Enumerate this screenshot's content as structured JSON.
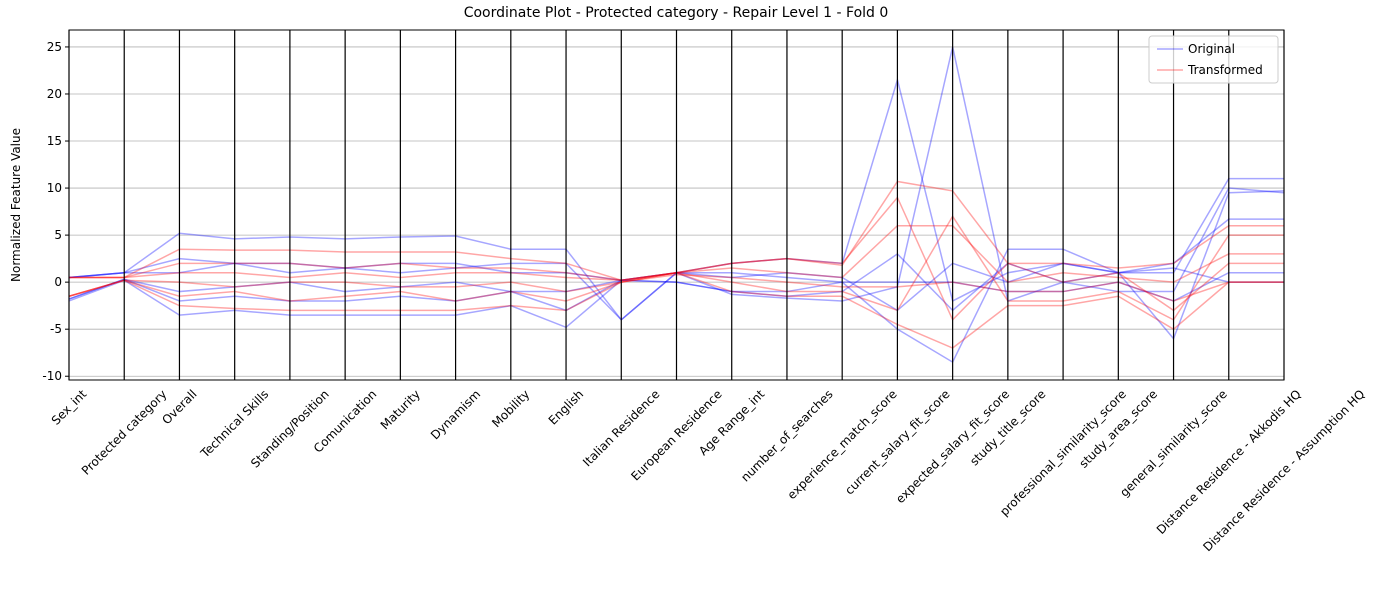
{
  "chart_data": {
    "type": "parallel",
    "title": "Coordinate Plot - Protected category - Repair Level 1 - Fold 0",
    "y_label": "Normalized Feature Value",
    "categories": [
      "Sex_int",
      "Protected category",
      "Overall",
      "Technical Skills",
      "Standing/Position",
      "Comunication",
      "Maturity",
      "Dynamism",
      "Mobility",
      "English",
      "Italian Residence",
      "European Residence",
      "Age Range_int",
      "number_of_searches",
      "experience_match_score",
      "current_salary_fit_score",
      "expected_salary_fit_score",
      "study_title_score",
      "professional_similarity_score",
      "study_area_score",
      "general_similarity_score",
      "Distance Residence - Akkodis HQ",
      "Distance Residence - Assumption HQ"
    ],
    "ylim": [
      -10.4,
      26.8
    ],
    "yticks": [
      -10,
      -5,
      0,
      5,
      10,
      15,
      20,
      25
    ],
    "grid": true,
    "legend": "upper right",
    "series": [
      {
        "name": "Original",
        "color": "#0000ff",
        "alpha": 0.35,
        "values": [
          [
            0.5,
            1,
            5.2,
            4.6,
            4.8,
            4.6,
            4.8,
            4.9,
            3.5,
            3.5,
            -4,
            1,
            2,
            2.5,
            2,
            21.5,
            -2,
            1,
            2,
            1,
            1,
            11,
            11
          ],
          [
            -2,
            0.2,
            -3.5,
            -3,
            -3.5,
            -3.5,
            -3.5,
            -3.5,
            -2.5,
            -4.8,
            0.2,
            1,
            -1.3,
            -1.7,
            -2,
            -0.5,
            25,
            -2,
            0,
            1,
            -6,
            9.5,
            9.7
          ],
          [
            0.5,
            1,
            2.5,
            2,
            2,
            1.5,
            2,
            2,
            1,
            1,
            0.2,
            1,
            1,
            0.5,
            0,
            -5,
            -8.5,
            3.5,
            3.5,
            1,
            2,
            6.7,
            6.7
          ],
          [
            -1.8,
            0.3,
            -1,
            -0.5,
            0,
            -1,
            -0.5,
            0,
            -1,
            -1,
            0.2,
            0,
            -1,
            -1,
            0,
            0,
            0,
            -1,
            -1,
            0,
            -2,
            1,
            1
          ],
          [
            0.5,
            1,
            1,
            2,
            1,
            1.5,
            1,
            1.5,
            2,
            2,
            -4,
            1,
            0.5,
            1,
            0.5,
            -3,
            2,
            0,
            2,
            1,
            1.5,
            0,
            0
          ],
          [
            -1.8,
            0.3,
            -2,
            -1.5,
            -2,
            -2,
            -1.5,
            -2,
            -1,
            -3,
            0.2,
            0,
            -1,
            -1.5,
            -1,
            3,
            -3,
            2,
            0,
            -1,
            -1,
            10,
            9.5
          ]
        ]
      },
      {
        "name": "Transformed",
        "color": "#ff0000",
        "alpha": 0.35,
        "values": [
          [
            0.5,
            0.5,
            3.5,
            3.4,
            3.4,
            3.2,
            3.2,
            3.2,
            2.5,
            2,
            0.2,
            1,
            2,
            2.5,
            1.8,
            10.7,
            9.7,
            2,
            2,
            1.5,
            2,
            6,
            6
          ],
          [
            -1.5,
            0.2,
            -2.5,
            -2.8,
            -3,
            -3,
            -3,
            -3,
            -2.5,
            -3,
            0,
            1,
            -1,
            -1.5,
            -1.5,
            -4.5,
            -7,
            -2.5,
            -2.5,
            -1.5,
            -5,
            0,
            0
          ],
          [
            0.5,
            0.5,
            1,
            1,
            0.5,
            1,
            0.5,
            1,
            1,
            0.5,
            0.2,
            1,
            1.5,
            1,
            0.5,
            6,
            6,
            0,
            1,
            0.5,
            0,
            3,
            3
          ],
          [
            -1.5,
            0.2,
            0,
            -0.5,
            0,
            0,
            -0.5,
            -0.5,
            0,
            -1,
            0,
            0.8,
            0.5,
            0,
            -0.5,
            -0.5,
            0,
            -1,
            -1,
            0,
            -2,
            0,
            0
          ],
          [
            0.5,
            0.5,
            2,
            2,
            2,
            1.5,
            2,
            1.5,
            1.5,
            1,
            0.2,
            1,
            2,
            2.5,
            2,
            9,
            -4,
            2,
            0,
            1,
            -3,
            2,
            2
          ],
          [
            -1.5,
            0.2,
            -1.5,
            -1,
            -2,
            -1.5,
            -1,
            -2,
            -1,
            -2,
            0,
            1,
            0,
            -1,
            -1,
            -3,
            7,
            -2,
            -2,
            -1,
            -4,
            5,
            5
          ]
        ]
      }
    ]
  }
}
